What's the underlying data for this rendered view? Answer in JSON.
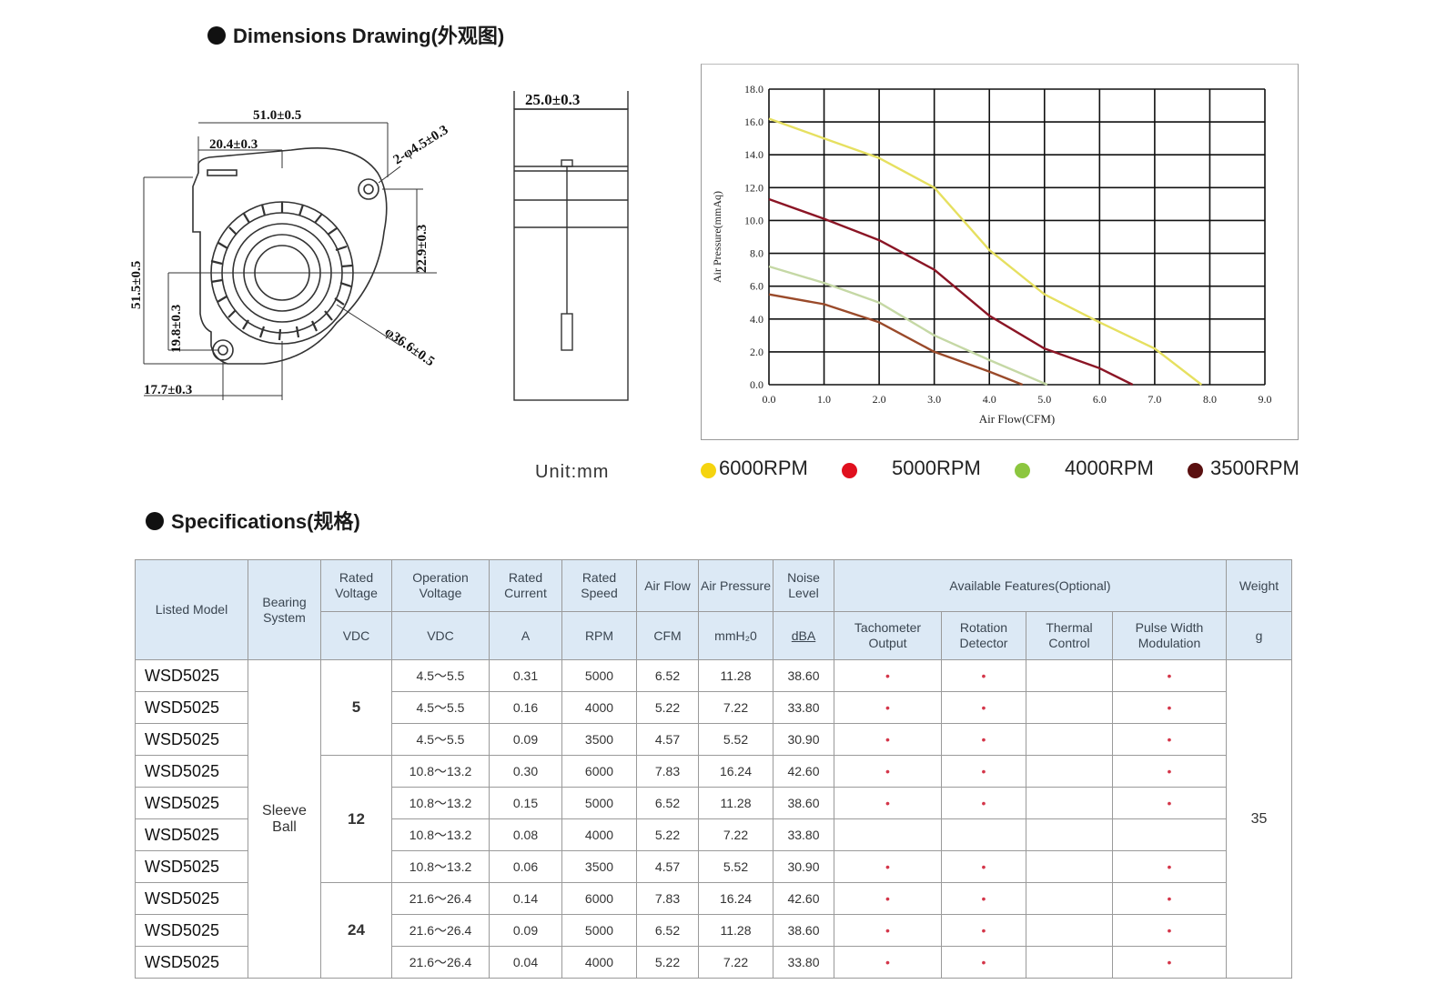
{
  "dimensions": {
    "title": "Dimensions Drawing(外观图)",
    "labels": {
      "width_total": "51.0±0.5",
      "width_offset": "20.4±0.3",
      "hole_spec": "2-φ4.5±0.3",
      "height_offset": "22.9±0.3",
      "height_total": "51.5±0.5",
      "hole_height": "19.8±0.3",
      "hole_offset": "17.7±0.3",
      "outlet_diameter": "φ36.6±0.5",
      "depth": "25.0±0.3"
    },
    "unit": "Unit:mm"
  },
  "chart_data": {
    "type": "line",
    "xlabel": "Air Flow(CFM)",
    "ylabel": "Air Pressure(mmAq)",
    "xlim": [
      0,
      9
    ],
    "ylim": [
      0,
      18
    ],
    "xticks": [
      "0.0",
      "1.0",
      "2.0",
      "3.0",
      "4.0",
      "5.0",
      "6.0",
      "7.0",
      "8.0",
      "9.0"
    ],
    "yticks": [
      "0.0",
      "2.0",
      "4.0",
      "6.0",
      "8.0",
      "10.0",
      "12.0",
      "14.0",
      "16.0",
      "18.0"
    ],
    "grid": true,
    "legend_position": "bottom",
    "series": [
      {
        "name": "6000RPM",
        "color": "#f5d40f",
        "line_color": "#e6e060",
        "x": [
          0,
          1,
          2,
          3,
          4,
          5,
          6,
          7,
          7.85
        ],
        "y": [
          16.2,
          15.0,
          13.8,
          12.0,
          8.2,
          5.5,
          3.8,
          2.2,
          0
        ]
      },
      {
        "name": "5000RPM",
        "color": "#e0101e",
        "line_color": "#8b1525",
        "x": [
          0,
          1,
          2,
          3,
          4,
          5,
          6,
          6.6
        ],
        "y": [
          11.3,
          10.1,
          8.8,
          7.0,
          4.2,
          2.2,
          1.0,
          0
        ]
      },
      {
        "name": "4000RPM",
        "color": "#8cc63f",
        "line_color": "#c5d8a5",
        "x": [
          0,
          1,
          2,
          3,
          4,
          5.05
        ],
        "y": [
          7.2,
          6.2,
          5.0,
          3.0,
          1.5,
          0
        ]
      },
      {
        "name": "3500RPM",
        "color": "#5a1010",
        "line_color": "#9a4a2a",
        "x": [
          0,
          1,
          2,
          3,
          4,
          4.6
        ],
        "y": [
          5.5,
          4.9,
          3.8,
          2.0,
          0.8,
          0
        ]
      }
    ]
  },
  "specifications": {
    "title": "Specifications(规格)",
    "headers": {
      "model": "Listed Model",
      "bearing": "Bearing System",
      "rated_voltage": "Rated Voltage",
      "operation_voltage": "Operation Voltage",
      "rated_current": "Rated Current",
      "rated_speed": "Rated Speed",
      "air_flow": "Air Flow",
      "air_pressure": "Air Pressure",
      "noise": "Noise Level",
      "features": "Available Features(Optional)",
      "weight": "Weight",
      "tacho": "Tachometer Output",
      "rotation": "Rotation Detector",
      "thermal": "Thermal Control",
      "pwm": "Pulse Width Modulation"
    },
    "units": {
      "rated_voltage": "VDC",
      "operation_voltage": "VDC",
      "rated_current": "A",
      "rated_speed": "RPM",
      "air_flow": "CFM",
      "air_pressure": "mmH₂0",
      "noise": "dBA",
      "weight": "g"
    },
    "bearing_value": "Sleeve Ball",
    "weight_value": "35",
    "voltage_groups": [
      "5",
      "12",
      "24"
    ],
    "marker": "•",
    "rows": [
      {
        "model": "WSD5025",
        "op_v": "4.5～5.5",
        "current": "0.31",
        "speed": "5000",
        "flow": "6.52",
        "pressure": "11.28",
        "noise": "38.60",
        "tacho": true,
        "rotation": true,
        "thermal": false,
        "pwm": true
      },
      {
        "model": "WSD5025",
        "op_v": "4.5～5.5",
        "current": "0.16",
        "speed": "4000",
        "flow": "5.22",
        "pressure": "7.22",
        "noise": "33.80",
        "tacho": true,
        "rotation": true,
        "thermal": false,
        "pwm": true
      },
      {
        "model": "WSD5025",
        "op_v": "4.5～5.5",
        "current": "0.09",
        "speed": "3500",
        "flow": "4.57",
        "pressure": "5.52",
        "noise": "30.90",
        "tacho": true,
        "rotation": true,
        "thermal": false,
        "pwm": true
      },
      {
        "model": "WSD5025",
        "op_v": "10.8～13.2",
        "current": "0.30",
        "speed": "6000",
        "flow": "7.83",
        "pressure": "16.24",
        "noise": "42.60",
        "tacho": true,
        "rotation": true,
        "thermal": false,
        "pwm": true
      },
      {
        "model": "WSD5025",
        "op_v": "10.8～13.2",
        "current": "0.15",
        "speed": "5000",
        "flow": "6.52",
        "pressure": "11.28",
        "noise": "38.60",
        "tacho": true,
        "rotation": true,
        "thermal": false,
        "pwm": true
      },
      {
        "model": "WSD5025",
        "op_v": "10.8～13.2",
        "current": "0.08",
        "speed": "4000",
        "flow": "5.22",
        "pressure": "7.22",
        "noise": "33.80",
        "tacho": false,
        "rotation": false,
        "thermal": false,
        "pwm": false
      },
      {
        "model": "WSD5025",
        "op_v": "10.8～13.2",
        "current": "0.06",
        "speed": "3500",
        "flow": "4.57",
        "pressure": "5.52",
        "noise": "30.90",
        "tacho": true,
        "rotation": true,
        "thermal": false,
        "pwm": true
      },
      {
        "model": "WSD5025",
        "op_v": "21.6～26.4",
        "current": "0.14",
        "speed": "6000",
        "flow": "7.83",
        "pressure": "16.24",
        "noise": "42.60",
        "tacho": true,
        "rotation": true,
        "thermal": false,
        "pwm": true
      },
      {
        "model": "WSD5025",
        "op_v": "21.6～26.4",
        "current": "0.09",
        "speed": "5000",
        "flow": "6.52",
        "pressure": "11.28",
        "noise": "38.60",
        "tacho": true,
        "rotation": true,
        "thermal": false,
        "pwm": true
      },
      {
        "model": "WSD5025",
        "op_v": "21.6～26.4",
        "current": "0.04",
        "speed": "4000",
        "flow": "5.22",
        "pressure": "7.22",
        "noise": "33.80",
        "tacho": true,
        "rotation": true,
        "thermal": false,
        "pwm": true
      }
    ]
  }
}
